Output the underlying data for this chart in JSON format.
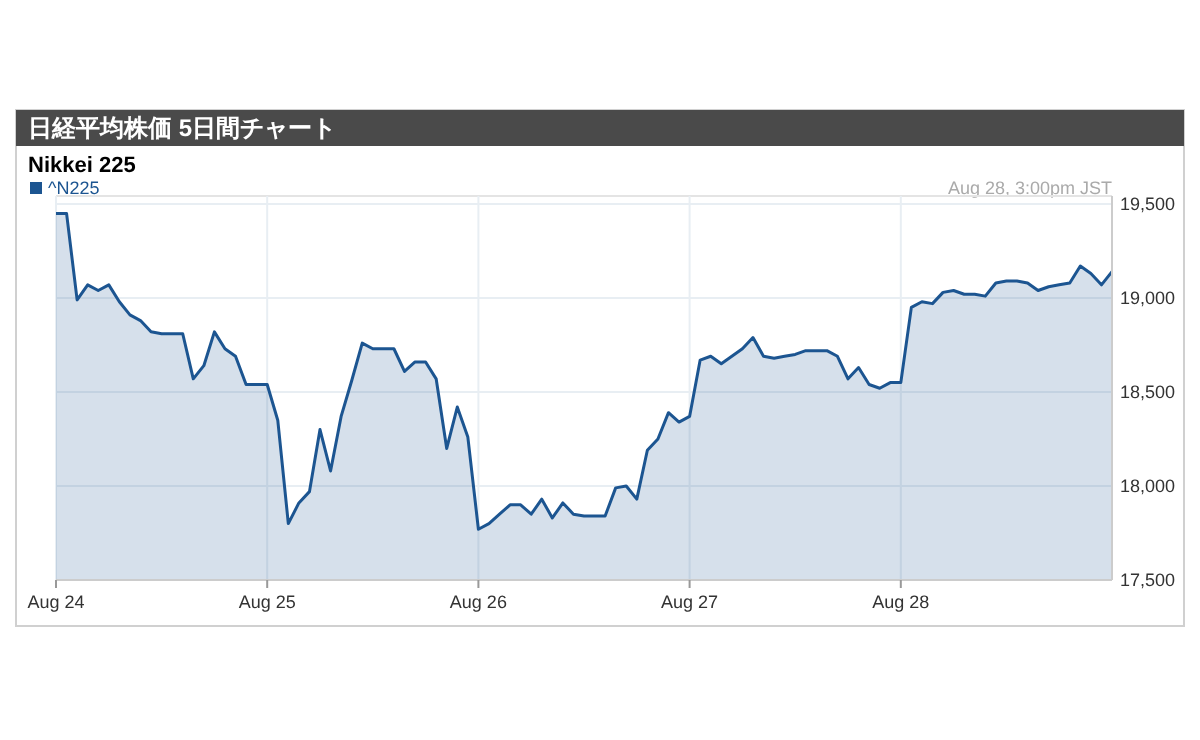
{
  "chart_data": {
    "type": "area",
    "title": "日経平均株価 5日間チャート",
    "subtitle": "Nikkei 225",
    "annotations": [
      "Aug 28, 3:00pm JST"
    ],
    "legend": "top left",
    "grid": true,
    "categories": [
      "Aug 24",
      null,
      null,
      null,
      null,
      null,
      null,
      null,
      null,
      null,
      null,
      null,
      null,
      null,
      null,
      null,
      null,
      null,
      null,
      null,
      "Aug 25",
      null,
      null,
      null,
      null,
      null,
      null,
      null,
      null,
      null,
      null,
      null,
      null,
      null,
      null,
      null,
      null,
      null,
      null,
      null,
      "Aug 26",
      null,
      null,
      null,
      null,
      null,
      null,
      null,
      null,
      null,
      null,
      null,
      null,
      null,
      null,
      null,
      null,
      null,
      null,
      null,
      "Aug 27",
      null,
      null,
      null,
      null,
      null,
      null,
      null,
      null,
      null,
      null,
      null,
      null,
      null,
      null,
      null,
      null,
      null,
      null,
      null,
      "Aug 28",
      null,
      null,
      null,
      null,
      null,
      null,
      null,
      null,
      null,
      null,
      null,
      null,
      null,
      null,
      null,
      null,
      null,
      null,
      null,
      null
    ],
    "ylim": [
      17500,
      19500
    ],
    "yticks": [
      {
        "value": 17500,
        "label": "17,500"
      },
      {
        "value": 18000,
        "label": "18,000"
      },
      {
        "value": 18500,
        "label": "18,500"
      },
      {
        "value": 19000,
        "label": "19,000"
      },
      {
        "value": 19500,
        "label": "19,500"
      }
    ],
    "series": [
      {
        "name": "^N225",
        "color": "#1c5591",
        "values": [
          19450,
          19450,
          18990,
          19070,
          19040,
          19070,
          18980,
          18910,
          18880,
          18820,
          18810,
          18810,
          18810,
          18570,
          18640,
          18820,
          18730,
          18690,
          18540,
          18540,
          18540,
          18350,
          17800,
          17910,
          17970,
          18300,
          18080,
          18370,
          18560,
          18760,
          18730,
          18730,
          18730,
          18610,
          18660,
          18660,
          18570,
          18200,
          18420,
          18260,
          17770,
          17800,
          17850,
          17900,
          17900,
          17850,
          17930,
          17830,
          17910,
          17850,
          17840,
          17840,
          17840,
          17990,
          18000,
          17930,
          18190,
          18250,
          18390,
          18340,
          18370,
          18670,
          18690,
          18650,
          18690,
          18730,
          18790,
          18690,
          18680,
          18690,
          18700,
          18720,
          18720,
          18720,
          18690,
          18570,
          18630,
          18540,
          18520,
          18550,
          18550,
          18950,
          18980,
          18970,
          19030,
          19040,
          19020,
          19020,
          19010,
          19080,
          19090,
          19090,
          19080,
          19040,
          19060,
          19070,
          19080,
          19170,
          19130,
          19070,
          19140
        ]
      }
    ]
  }
}
